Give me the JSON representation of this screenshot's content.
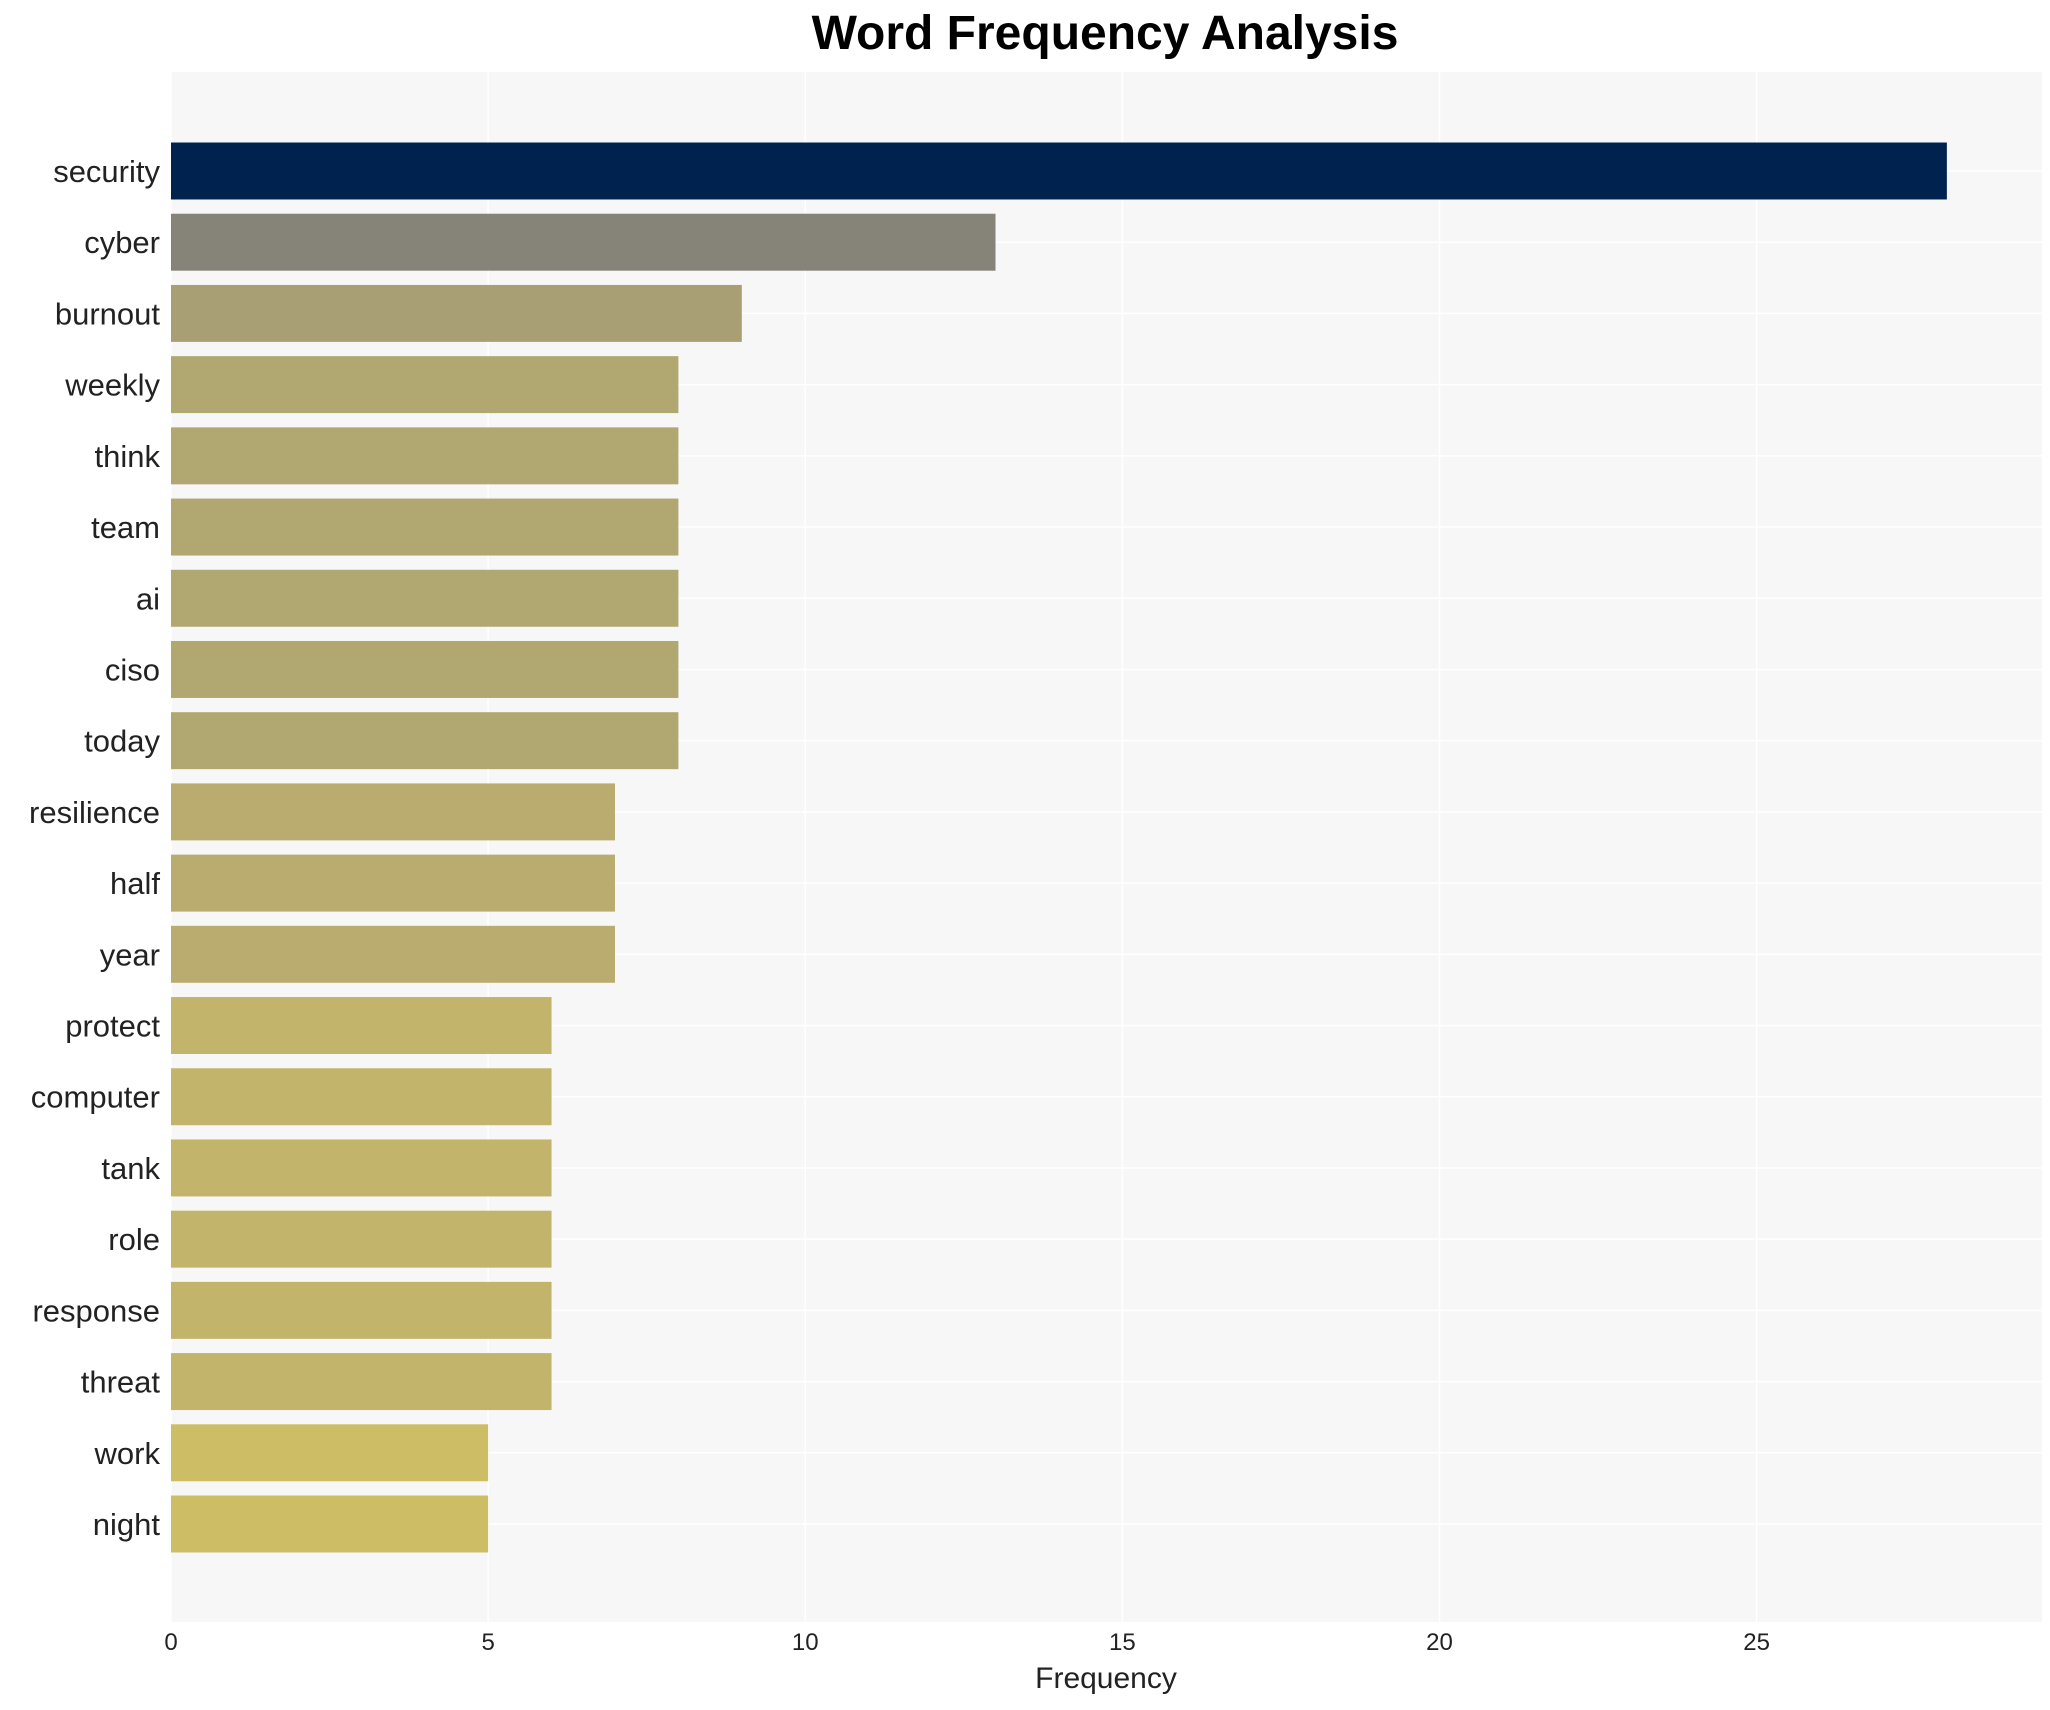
{
  "chart_data": {
    "type": "bar",
    "orientation": "horizontal",
    "title": "Word Frequency Analysis",
    "xlabel": "Frequency",
    "ylabel": "",
    "xlim": [
      0,
      29.5
    ],
    "xticks": [
      0,
      5,
      10,
      15,
      20,
      25
    ],
    "grid": true,
    "categories": [
      "security",
      "cyber",
      "burnout",
      "weekly",
      "think",
      "team",
      "ai",
      "ciso",
      "today",
      "resilience",
      "half",
      "year",
      "protect",
      "computer",
      "tank",
      "role",
      "response",
      "threat",
      "work",
      "night"
    ],
    "values": [
      28,
      13,
      9,
      8,
      8,
      8,
      8,
      8,
      8,
      7,
      7,
      7,
      6,
      6,
      6,
      6,
      6,
      6,
      5,
      5
    ],
    "colors": [
      "#00224e",
      "#868479",
      "#a99f75",
      "#b1a771",
      "#b1a771",
      "#b1a771",
      "#b1a771",
      "#b1a771",
      "#b1a771",
      "#b9ac6e",
      "#b9ac6e",
      "#b9ac6e",
      "#c2b46a",
      "#c2b46a",
      "#c2b46a",
      "#c2b46a",
      "#c2b46a",
      "#c2b46a",
      "#cdbd64",
      "#cdbd64"
    ]
  }
}
